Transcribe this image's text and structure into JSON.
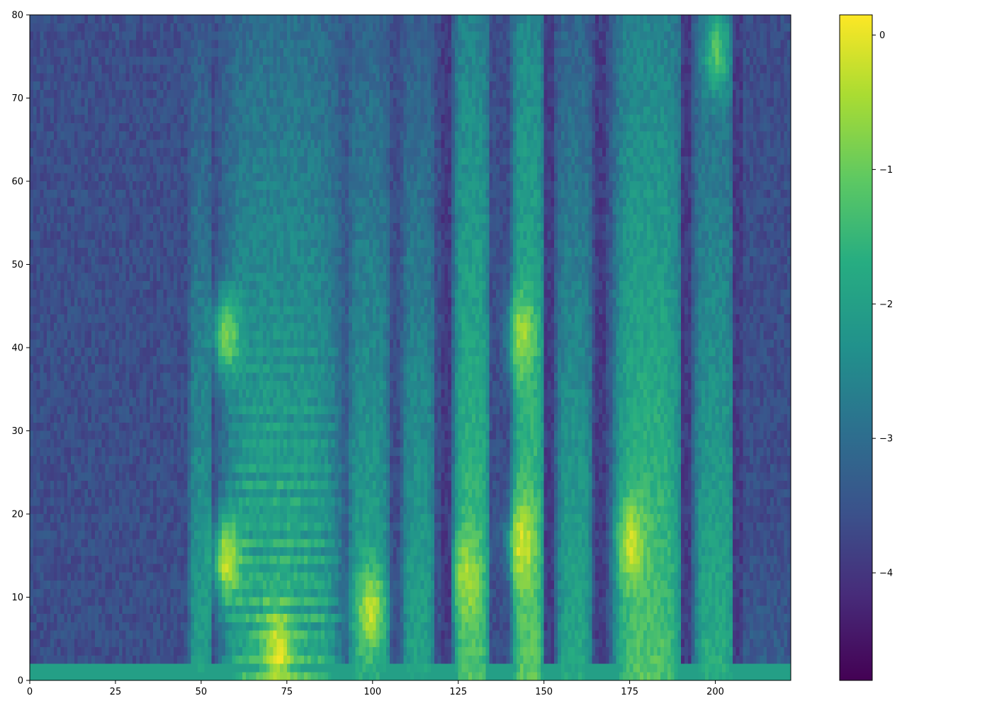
{
  "chart_data": {
    "type": "heatmap",
    "title": "",
    "xlabel": "",
    "ylabel": "",
    "xlim": [
      0,
      222
    ],
    "ylim": [
      0,
      80
    ],
    "grid": false,
    "xticks": [
      0,
      25,
      50,
      75,
      100,
      125,
      150,
      175,
      200
    ],
    "xtick_labels": [
      "0",
      "25",
      "50",
      "75",
      "100",
      "125",
      "150",
      "175",
      "200"
    ],
    "yticks": [
      0,
      10,
      20,
      30,
      40,
      50,
      60,
      70,
      80
    ],
    "ytick_labels": [
      "0",
      "10",
      "20",
      "30",
      "40",
      "50",
      "60",
      "70",
      "80"
    ],
    "colormap": "viridis",
    "colorbar": {
      "vmin": -4.8,
      "vmax": 0.15,
      "ticks": [
        0,
        -1,
        -2,
        -3,
        -4
      ],
      "tick_labels": [
        "0",
        "−1",
        "−2",
        "−3",
        "−4"
      ]
    },
    "grid_shape": {
      "columns": 222,
      "rows": 80
    },
    "background_level": -3.6,
    "segments": [
      {
        "x": [
          0,
          46
        ],
        "level": -3.6,
        "note_free": true
      },
      {
        "x": [
          46,
          53
        ],
        "level": -2.0
      },
      {
        "x": [
          54,
          92
        ],
        "level": -1.6,
        "harmonic_spacing_bins": 2.3
      },
      {
        "x": [
          92,
          105
        ],
        "level": -1.8
      },
      {
        "x": [
          108,
          118
        ],
        "level": -1.9
      },
      {
        "x": [
          123,
          134
        ],
        "level": -1.2
      },
      {
        "x": [
          140,
          150
        ],
        "level": -1.1
      },
      {
        "x": [
          153,
          164
        ],
        "level": -1.8
      },
      {
        "x": [
          169,
          191
        ],
        "level": -1.2
      },
      {
        "x": [
          193,
          206
        ],
        "level": -1.7
      },
      {
        "x": [
          206,
          222
        ],
        "level": -3.3
      }
    ],
    "peaks": [
      {
        "x": 57,
        "y": 14,
        "value": 0.1
      },
      {
        "x": 72,
        "y": 3,
        "value": 0.1
      },
      {
        "x": 57,
        "y": 41,
        "value": -0.6
      },
      {
        "x": 99,
        "y": 8,
        "value": -0.1
      },
      {
        "x": 127,
        "y": 12,
        "value": -0.4
      },
      {
        "x": 143,
        "y": 16,
        "value": 0.0
      },
      {
        "x": 143,
        "y": 41,
        "value": -0.4
      },
      {
        "x": 175,
        "y": 16,
        "value": -0.1
      },
      {
        "x": 200,
        "y": 75,
        "value": -1.0
      }
    ],
    "dark_columns": [
      121,
      151,
      166,
      191,
      206
    ]
  }
}
